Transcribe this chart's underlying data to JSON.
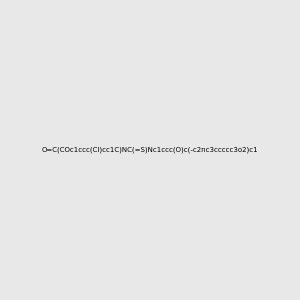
{
  "smiles_correct": "O=C(COc1ccc(Cl)cc1C)NC(=S)Nc1ccc(O)c(-c2nc3ccccc3o2)c1",
  "background_color": "#e8e8e8",
  "figsize": [
    3.0,
    3.0
  ],
  "dpi": 100,
  "img_size": [
    300,
    300
  ]
}
